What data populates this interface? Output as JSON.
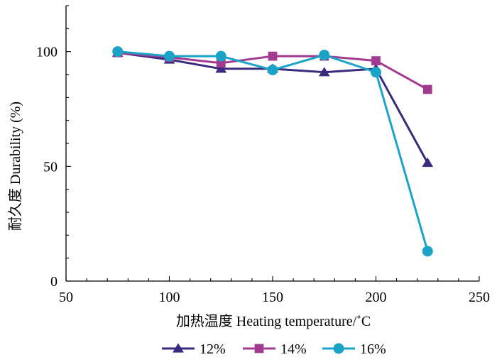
{
  "chart_data": {
    "type": "line",
    "xlabel": "加热温度 Heating temperature/˚C",
    "ylabel": "耐久度 Durability (%)",
    "xlim": [
      50,
      250
    ],
    "ylim": [
      0,
      120
    ],
    "x_ticks": [
      50,
      100,
      150,
      200,
      250
    ],
    "y_ticks": [
      0,
      50,
      100
    ],
    "grid": false,
    "legend_position": "bottom",
    "x": [
      75,
      100,
      125,
      150,
      175,
      200,
      225
    ],
    "series": [
      {
        "name": "12%",
        "marker": "triangle",
        "color": "#3b2a7d",
        "values": [
          99.5,
          96.5,
          92.5,
          92.5,
          91,
          92.5,
          51.5
        ]
      },
      {
        "name": "14%",
        "marker": "square",
        "color": "#a23b8f",
        "values": [
          99.5,
          97.5,
          95,
          98,
          98,
          96,
          83.5
        ]
      },
      {
        "name": "16%",
        "marker": "circle",
        "color": "#1aa3c7",
        "values": [
          100,
          98,
          98,
          92,
          98.5,
          91,
          13
        ]
      }
    ]
  }
}
